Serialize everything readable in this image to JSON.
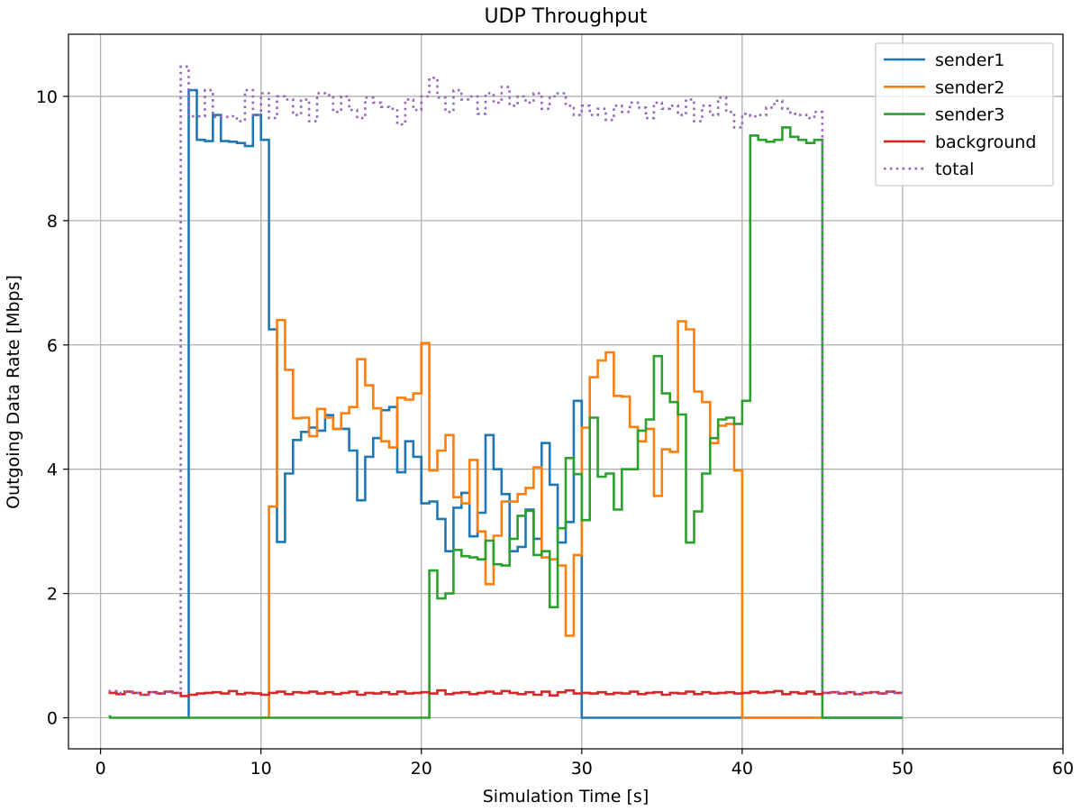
{
  "chart_data": {
    "type": "line",
    "title": "UDP Throughput",
    "xlabel": "Simulation Time [s]",
    "ylabel": "Outgoing Data Rate [Mbps]",
    "xlim": [
      -2,
      60
    ],
    "ylim": [
      -0.5,
      11.0
    ],
    "xticks": [
      0,
      10,
      20,
      30,
      40,
      50,
      60
    ],
    "yticks": [
      0,
      2,
      4,
      6,
      8,
      10
    ],
    "grid": true,
    "legend": "top-right",
    "step": "post",
    "series": [
      {
        "name": "sender1",
        "color": "#1f77b4",
        "style": "solid",
        "x": [
          5.0,
          5.5,
          6.0,
          6.5,
          7.0,
          7.5,
          8.0,
          8.5,
          9.0,
          9.5,
          10.0,
          10.5,
          11.0,
          11.5,
          12.0,
          12.5,
          13.0,
          13.5,
          14.0,
          14.5,
          15.0,
          15.5,
          16.0,
          16.5,
          17.0,
          17.5,
          18.0,
          18.5,
          19.0,
          19.5,
          20.0,
          20.5,
          21.0,
          21.5,
          22.0,
          22.5,
          23.0,
          23.5,
          24.0,
          24.5,
          25.0,
          25.5,
          26.0,
          26.5,
          27.0,
          27.5,
          28.0,
          28.5,
          29.0,
          29.5,
          30.0,
          50.0
        ],
        "y": [
          0.0,
          10.1,
          9.3,
          9.28,
          9.7,
          9.28,
          9.27,
          9.25,
          9.2,
          9.7,
          9.3,
          6.25,
          2.83,
          3.93,
          4.47,
          4.6,
          4.67,
          4.62,
          4.87,
          4.65,
          4.65,
          4.3,
          3.5,
          4.2,
          4.5,
          4.95,
          5.0,
          3.95,
          4.45,
          4.2,
          3.45,
          3.48,
          3.2,
          2.68,
          3.38,
          3.62,
          2.92,
          3.3,
          4.55,
          4.0,
          3.6,
          2.68,
          2.75,
          3.35,
          2.88,
          4.42,
          3.75,
          2.82,
          3.15,
          5.1,
          0.0,
          0.0
        ]
      },
      {
        "name": "sender2",
        "color": "#ff7f0e",
        "style": "solid",
        "x": [
          10.0,
          10.5,
          11.0,
          11.5,
          12.0,
          12.5,
          13.0,
          13.5,
          14.0,
          14.5,
          15.0,
          15.5,
          16.0,
          16.5,
          17.0,
          17.5,
          18.0,
          18.5,
          19.0,
          19.5,
          20.0,
          20.5,
          21.0,
          21.5,
          22.0,
          22.5,
          23.0,
          23.5,
          24.0,
          24.5,
          25.0,
          25.5,
          26.0,
          26.5,
          27.0,
          27.5,
          28.0,
          28.5,
          29.0,
          29.5,
          30.0,
          30.5,
          31.0,
          31.5,
          32.0,
          32.5,
          33.0,
          33.5,
          34.0,
          34.5,
          35.0,
          35.5,
          36.0,
          36.5,
          37.0,
          37.5,
          38.0,
          38.5,
          39.0,
          39.5,
          40.0,
          45.0
        ],
        "y": [
          0.0,
          3.4,
          6.4,
          5.6,
          4.82,
          4.83,
          4.53,
          4.97,
          4.83,
          4.65,
          4.9,
          5.0,
          5.77,
          5.35,
          4.98,
          4.45,
          4.35,
          5.15,
          5.12,
          5.22,
          6.03,
          3.98,
          4.3,
          4.55,
          3.55,
          3.45,
          4.15,
          3.0,
          2.15,
          2.93,
          3.48,
          3.48,
          3.6,
          3.7,
          4.03,
          2.58,
          2.55,
          2.45,
          1.32,
          2.62,
          4.67,
          5.48,
          5.75,
          5.88,
          5.18,
          5.17,
          4.68,
          4.45,
          4.65,
          3.57,
          4.32,
          4.28,
          6.38,
          6.25,
          5.25,
          5.08,
          4.42,
          4.7,
          4.73,
          3.98,
          0.0,
          0.0
        ]
      },
      {
        "name": "sender3",
        "color": "#2ca02c",
        "style": "solid",
        "x": [
          0.5,
          0.6,
          20.0,
          20.5,
          21.0,
          21.5,
          22.0,
          22.5,
          23.0,
          23.5,
          24.0,
          24.5,
          25.0,
          25.5,
          26.0,
          26.5,
          27.0,
          27.5,
          28.0,
          28.5,
          29.0,
          29.5,
          30.0,
          30.5,
          31.0,
          31.5,
          32.0,
          32.5,
          33.0,
          33.5,
          34.0,
          34.5,
          35.0,
          35.5,
          36.0,
          36.5,
          37.0,
          37.5,
          38.0,
          38.5,
          39.0,
          39.5,
          40.0,
          40.5,
          41.0,
          41.5,
          42.0,
          42.5,
          43.0,
          43.5,
          44.0,
          44.5,
          45.0,
          50.0
        ],
        "y": [
          0.02,
          0.0,
          0.0,
          2.37,
          1.92,
          2.0,
          2.7,
          2.6,
          2.58,
          2.55,
          2.85,
          2.47,
          2.45,
          2.88,
          3.25,
          3.33,
          2.62,
          2.68,
          1.78,
          3.05,
          4.18,
          3.92,
          3.18,
          4.83,
          3.88,
          3.93,
          3.35,
          4.0,
          4.0,
          4.62,
          4.8,
          5.82,
          5.22,
          5.08,
          4.88,
          2.82,
          3.32,
          3.93,
          4.5,
          4.8,
          4.83,
          4.73,
          5.1,
          9.37,
          9.3,
          9.27,
          9.3,
          9.5,
          9.35,
          9.3,
          9.25,
          9.3,
          0.0,
          0.0
        ]
      },
      {
        "name": "background",
        "color": "#d62728",
        "style": "solid",
        "x": [
          0.5,
          1.0,
          1.5,
          2.0,
          2.5,
          3.0,
          3.5,
          4.0,
          4.5,
          5.0,
          5.5,
          6.0,
          6.5,
          7.0,
          7.5,
          8.0,
          8.5,
          9.0,
          9.5,
          10.0,
          10.5,
          11.0,
          11.5,
          12.0,
          12.5,
          13.0,
          13.5,
          14.0,
          14.5,
          15.0,
          15.5,
          16.0,
          16.5,
          17.0,
          17.5,
          18.0,
          18.5,
          19.0,
          19.5,
          20.0,
          20.5,
          21.0,
          21.5,
          22.0,
          22.5,
          23.0,
          23.5,
          24.0,
          24.5,
          25.0,
          25.5,
          26.0,
          26.5,
          27.0,
          27.5,
          28.0,
          28.5,
          29.0,
          29.5,
          30.0,
          30.5,
          31.0,
          31.5,
          32.0,
          32.5,
          33.0,
          33.5,
          34.0,
          34.5,
          35.0,
          35.5,
          36.0,
          36.5,
          37.0,
          37.5,
          38.0,
          38.5,
          39.0,
          39.5,
          40.0,
          40.5,
          41.0,
          41.5,
          42.0,
          42.5,
          43.0,
          43.5,
          44.0,
          44.5,
          45.0,
          45.5,
          46.0,
          46.5,
          47.0,
          47.5,
          48.0,
          48.5,
          49.0,
          49.5,
          50.0
        ],
        "y": [
          0.4,
          0.38,
          0.42,
          0.4,
          0.37,
          0.41,
          0.39,
          0.42,
          0.4,
          0.35,
          0.37,
          0.39,
          0.4,
          0.41,
          0.39,
          0.43,
          0.38,
          0.4,
          0.39,
          0.37,
          0.4,
          0.42,
          0.38,
          0.41,
          0.4,
          0.42,
          0.39,
          0.41,
          0.38,
          0.4,
          0.42,
          0.37,
          0.4,
          0.39,
          0.41,
          0.38,
          0.42,
          0.39,
          0.4,
          0.41,
          0.39,
          0.44,
          0.38,
          0.4,
          0.41,
          0.38,
          0.4,
          0.42,
          0.39,
          0.43,
          0.4,
          0.38,
          0.41,
          0.37,
          0.42,
          0.36,
          0.41,
          0.44,
          0.39,
          0.4,
          0.39,
          0.41,
          0.38,
          0.4,
          0.39,
          0.42,
          0.38,
          0.4,
          0.41,
          0.37,
          0.4,
          0.39,
          0.42,
          0.38,
          0.41,
          0.39,
          0.4,
          0.41,
          0.39,
          0.4,
          0.42,
          0.4,
          0.41,
          0.43,
          0.38,
          0.41,
          0.39,
          0.42,
          0.38,
          0.4,
          0.41,
          0.39,
          0.41,
          0.38,
          0.4,
          0.41,
          0.39,
          0.42,
          0.4,
          0.4
        ]
      },
      {
        "name": "total",
        "color": "#9467bd",
        "style": "dotted",
        "x": [
          0.5,
          1.0,
          1.5,
          2.0,
          2.5,
          3.0,
          3.5,
          4.0,
          4.5,
          5.0,
          5.5,
          6.0,
          6.5,
          7.0,
          7.5,
          8.0,
          8.5,
          9.0,
          9.5,
          10.0,
          10.5,
          11.0,
          11.5,
          12.0,
          12.5,
          13.0,
          13.5,
          14.0,
          14.5,
          15.0,
          15.5,
          16.0,
          16.5,
          17.0,
          17.5,
          18.0,
          18.5,
          19.0,
          19.5,
          20.0,
          20.5,
          21.0,
          21.5,
          22.0,
          22.5,
          23.0,
          23.5,
          24.0,
          24.5,
          25.0,
          25.5,
          26.0,
          26.5,
          27.0,
          27.5,
          28.0,
          28.5,
          29.0,
          29.5,
          30.0,
          30.5,
          31.0,
          31.5,
          32.0,
          32.5,
          33.0,
          33.5,
          34.0,
          34.5,
          35.0,
          35.5,
          36.0,
          36.5,
          37.0,
          37.5,
          38.0,
          38.5,
          39.0,
          39.5,
          40.0,
          40.5,
          41.0,
          41.5,
          42.0,
          42.5,
          43.0,
          43.5,
          44.0,
          44.5,
          45.0,
          45.5,
          46.0,
          46.5,
          47.0,
          47.5,
          48.0,
          48.5,
          49.0,
          49.5,
          50.0
        ],
        "y": [
          0.43,
          0.4,
          0.41,
          0.4,
          0.37,
          0.41,
          0.39,
          0.42,
          0.4,
          10.48,
          9.68,
          9.68,
          10.1,
          9.67,
          9.67,
          9.68,
          9.6,
          10.1,
          9.7,
          10.05,
          9.65,
          10.0,
          9.95,
          9.7,
          9.95,
          9.6,
          10.05,
          10.02,
          9.75,
          10.0,
          9.78,
          9.65,
          9.98,
          9.9,
          9.83,
          9.8,
          9.55,
          9.95,
          9.78,
          10.0,
          10.3,
          9.98,
          9.75,
          10.1,
          9.95,
          10.0,
          9.72,
          10.05,
          9.9,
          10.15,
          9.85,
          10.0,
          9.9,
          10.05,
          9.8,
          10.0,
          10.05,
          9.85,
          9.7,
          9.85,
          9.7,
          9.8,
          9.62,
          9.85,
          9.75,
          9.9,
          9.82,
          9.65,
          9.9,
          9.8,
          9.85,
          9.7,
          9.95,
          9.6,
          9.85,
          9.7,
          9.98,
          9.75,
          9.5,
          9.72,
          9.68,
          9.7,
          9.82,
          9.93,
          9.8,
          9.72,
          9.7,
          9.65,
          9.75,
          0.4,
          0.41,
          0.39,
          0.41,
          0.38,
          0.4,
          0.41,
          0.39,
          0.42,
          0.4,
          0.4
        ]
      }
    ]
  }
}
